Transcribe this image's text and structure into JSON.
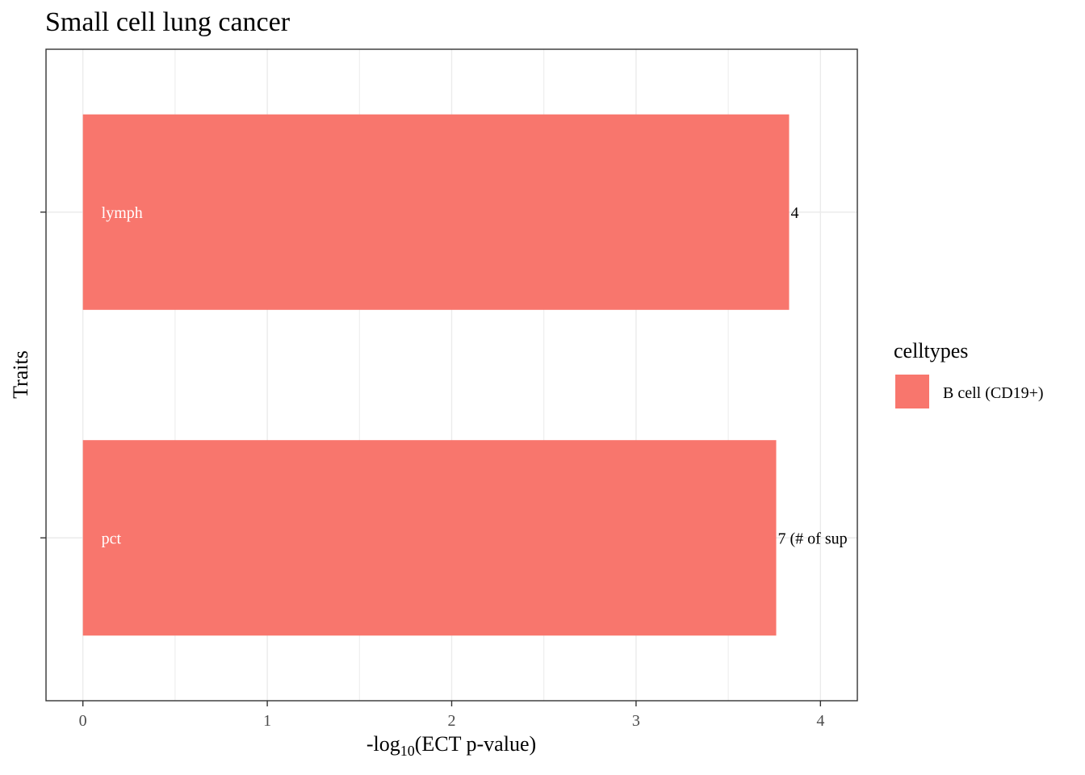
{
  "chart_data": {
    "type": "bar",
    "orientation": "horizontal",
    "title": "Small cell lung cancer",
    "xlabel": {
      "prefix": "-log",
      "subscript": "10",
      "suffix": "(ECT p-value)"
    },
    "ylabel": "Traits",
    "xlim": [
      -0.2,
      4.2
    ],
    "xticks": [
      0,
      1,
      2,
      3,
      4
    ],
    "minor_gridlines": [
      0.5,
      1.5,
      2.5,
      3.5
    ],
    "grid": true,
    "categories": [
      "lymph",
      "pct"
    ],
    "series": [
      {
        "name": "B cell (CD19+)",
        "color": "#F8766D",
        "values": [
          3.83,
          3.76
        ],
        "bar_labels": [
          "lymph",
          "pct"
        ],
        "end_labels": [
          "4",
          "7 (# of sup"
        ]
      }
    ],
    "legend": {
      "title": "celltypes",
      "position": "right"
    }
  }
}
